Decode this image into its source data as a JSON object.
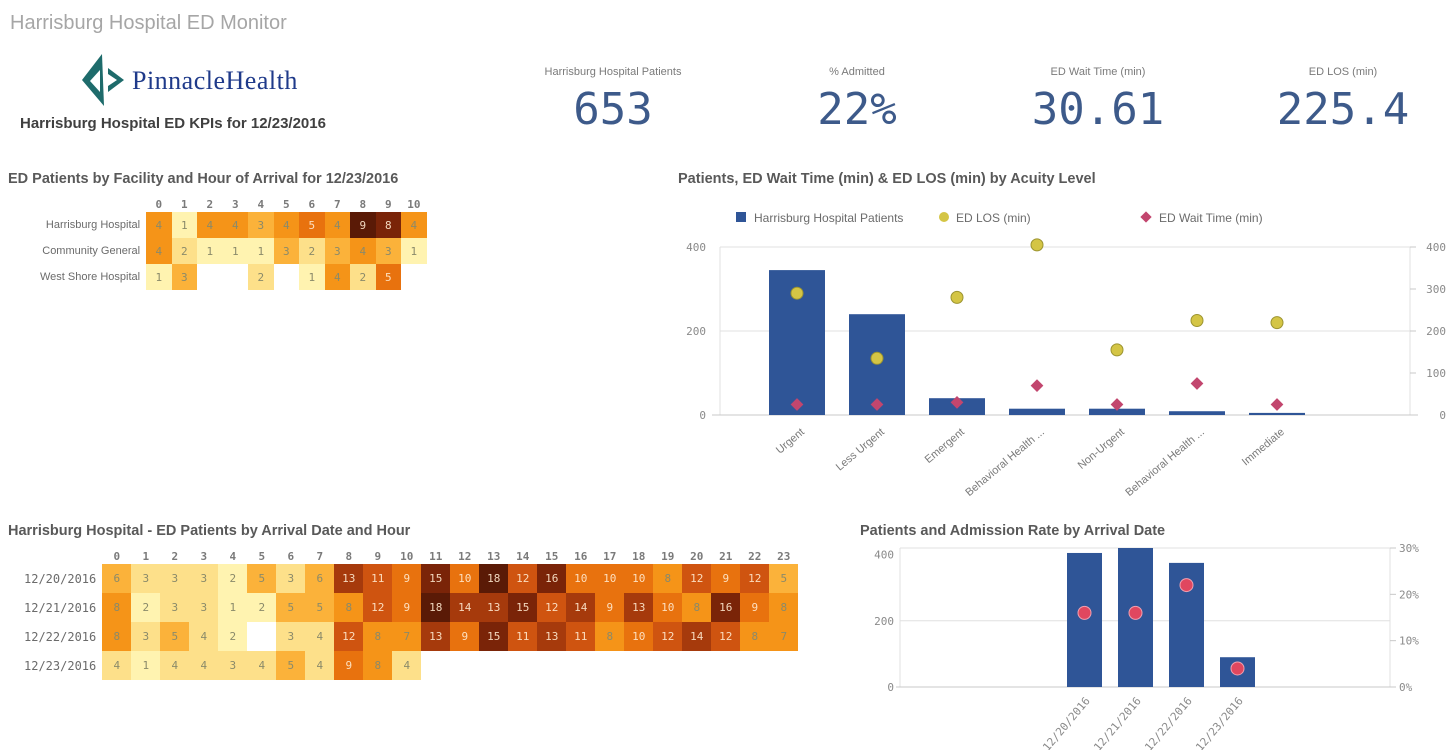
{
  "app": {
    "title": "Harrisburg Hospital ED Monitor"
  },
  "logo": {
    "text": "PinnacleHealth",
    "brand_color": "#1f3a8a",
    "mark_color": "#1e6b6b"
  },
  "kpi_subtitle": "Harrisburg Hospital ED KPIs for 12/23/2016",
  "kpis": [
    {
      "label": "Harrisburg Hospital Patients",
      "value": "653"
    },
    {
      "label": "% Admitted",
      "value": "22%"
    },
    {
      "label": "ED Wait Time (min)",
      "value": "30.61"
    },
    {
      "label": "ED LOS (min)",
      "value": "225.4"
    }
  ],
  "colors": {
    "bar": "#2f5597",
    "los_marker": "#d4c545",
    "wait_marker": "#c2466e",
    "admit_marker": "#e0475f",
    "heat_scale": [
      "#fffbd8",
      "#fff3b0",
      "#fde08a",
      "#fbb23a",
      "#f59418",
      "#e8720e",
      "#cf5410",
      "#a63a0c",
      "#7a2408",
      "#5a1a06"
    ]
  },
  "chart_data": [
    {
      "type": "heatmap",
      "title": "ED Patients by Facility and Hour of Arrival for 12/23/2016",
      "x": [
        "0",
        "1",
        "2",
        "3",
        "4",
        "5",
        "6",
        "7",
        "8",
        "9",
        "10"
      ],
      "y": [
        "Harrisburg Hospital",
        "Community General",
        "West Shore Hospital"
      ],
      "values": [
        [
          4,
          1,
          4,
          4,
          3,
          4,
          5,
          4,
          9,
          8,
          4
        ],
        [
          4,
          2,
          1,
          1,
          1,
          3,
          2,
          3,
          4,
          3,
          1
        ],
        [
          1,
          3,
          null,
          null,
          2,
          null,
          1,
          4,
          2,
          5,
          null
        ]
      ],
      "max": 9
    },
    {
      "type": "bar",
      "title": "Patients, ED Wait Time (min) & ED LOS (min) by Acuity Level",
      "categories": [
        "Urgent",
        "Less Urgent",
        "Emergent",
        "Behavioral Health ...",
        "Non-Urgent",
        "Behavioral Health ...",
        "Immediate"
      ],
      "series": [
        {
          "name": "Harrisburg Hospital Patients",
          "kind": "bar",
          "axis": "left",
          "values": [
            345,
            240,
            40,
            15,
            15,
            9,
            5
          ]
        },
        {
          "name": "ED LOS (min)",
          "kind": "circle",
          "axis": "right",
          "values": [
            290,
            135,
            280,
            405,
            155,
            225,
            220
          ]
        },
        {
          "name": "ED Wait Time (min)",
          "kind": "diamond",
          "axis": "right",
          "values": [
            25,
            25,
            30,
            70,
            25,
            75,
            25
          ]
        }
      ],
      "ylim_left": [
        0,
        400
      ],
      "yticks_left": [
        "0",
        "200",
        "400"
      ],
      "ylim_right": [
        0,
        400
      ],
      "yticks_right": [
        "0",
        "100",
        "200",
        "300",
        "400"
      ],
      "legend": "top",
      "grid": true
    },
    {
      "type": "heatmap",
      "title": "Harrisburg Hospital - ED Patients by Arrival Date and Hour",
      "x": [
        "0",
        "1",
        "2",
        "3",
        "4",
        "5",
        "6",
        "7",
        "8",
        "9",
        "10",
        "11",
        "12",
        "13",
        "14",
        "15",
        "16",
        "17",
        "18",
        "19",
        "20",
        "21",
        "22",
        "23"
      ],
      "y": [
        "12/20/2016",
        "12/21/2016",
        "12/22/2016",
        "12/23/2016"
      ],
      "values": [
        [
          6,
          3,
          3,
          3,
          2,
          5,
          3,
          6,
          13,
          11,
          9,
          15,
          10,
          18,
          12,
          16,
          10,
          10,
          10,
          8,
          12,
          9,
          12,
          5
        ],
        [
          8,
          2,
          3,
          3,
          1,
          2,
          5,
          5,
          8,
          12,
          9,
          18,
          14,
          13,
          15,
          12,
          14,
          9,
          13,
          10,
          8,
          16,
          9,
          8
        ],
        [
          8,
          3,
          5,
          4,
          2,
          null,
          3,
          4,
          12,
          8,
          7,
          13,
          9,
          15,
          11,
          13,
          11,
          8,
          10,
          12,
          14,
          12,
          8,
          7
        ],
        [
          4,
          1,
          4,
          4,
          3,
          4,
          5,
          4,
          9,
          8,
          4,
          null,
          null,
          null,
          null,
          null,
          null,
          null,
          null,
          null,
          null,
          null,
          null,
          null
        ]
      ],
      "max": 18
    },
    {
      "type": "bar",
      "title": "Patients and Admission Rate by Arrival Date",
      "categories": [
        "12/20/2016",
        "12/21/2016",
        "12/22/2016",
        "12/23/2016"
      ],
      "series": [
        {
          "name": "Patients",
          "kind": "bar",
          "axis": "left",
          "values": [
            405,
            420,
            375,
            90
          ]
        },
        {
          "name": "Admission Rate",
          "kind": "circle",
          "axis": "right",
          "values": [
            16,
            16,
            22,
            4
          ]
        }
      ],
      "ylim_left": [
        0,
        420
      ],
      "yticks_left": [
        "0",
        "200",
        "400"
      ],
      "ylim_right": [
        0,
        30
      ],
      "yticks_right": [
        "0%",
        "10%",
        "20%",
        "30%"
      ],
      "grid": true
    }
  ]
}
